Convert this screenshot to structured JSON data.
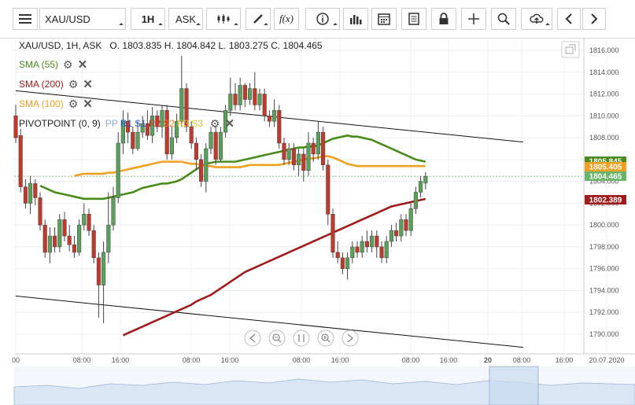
{
  "toolbar": {
    "symbol": "XAU/USD",
    "timeframe": "1H",
    "price_type": "ASK",
    "icons": [
      "menu-icon",
      "chart-type-icon",
      "drawing-pencil-icon",
      "function-icon",
      "info-icon",
      "bar-chart-icon",
      "calendar-icon",
      "report-icon",
      "lock-icon",
      "crosshair-icon",
      "zoom-icon",
      "cloud-upload-icon",
      "arrow-left-icon",
      "arrow-right-icon"
    ],
    "fx_label": "f(x)"
  },
  "header": {
    "symbol_line": "XAU/USD, 1H, ASK",
    "ohlc": "O. 1803.835 H. 1804.842 L. 1803.275 C. 1804.465"
  },
  "indicators": [
    {
      "label": "SMA (55)",
      "color": "#4a8c1c"
    },
    {
      "label": "SMA (200)",
      "color": "#a01c1c"
    },
    {
      "label": "SMA (100)",
      "color": "#f0a020"
    }
  ],
  "pivot": {
    "label": "PIVOTPOINT (0, 9)",
    "levels": [
      {
        "label": "PP",
        "color": "#88aadd"
      },
      {
        "label": "R1",
        "color": "#2255cc"
      },
      {
        "label": "S1",
        "color": "#2255cc"
      },
      {
        "label": "R2",
        "color": "#d03030"
      },
      {
        "label": "S2",
        "color": "#f08020"
      },
      {
        "label": "R3",
        "color": "#e0c020"
      },
      {
        "label": "S3",
        "color": "#e0c020"
      }
    ]
  },
  "chart_data": {
    "type": "candlestick",
    "y_axis": {
      "range": [
        1788.5,
        1817.5
      ],
      "ticks": [
        "1816.000",
        "1814.000",
        "1812.000",
        "1810.000",
        "1808.000",
        "1806.000",
        "1804.000",
        "1802.000",
        "1800.000",
        "1798.000",
        "1796.000",
        "1794.000",
        "1792.000",
        "1790.000"
      ]
    },
    "x_axis": {
      "labels": [
        "00",
        "08:00",
        "16:00",
        "08:00",
        "16:00",
        "08:00",
        "16:00",
        "08:00",
        "16:00",
        "20",
        "08:00",
        "16:00",
        "20.07.2020"
      ]
    },
    "price_tags": [
      {
        "label": "1805.845",
        "value": 1805.845,
        "bg": "#4a8c1c",
        "fg": "#ffffff"
      },
      {
        "label": "1805.405",
        "value": 1805.405,
        "bg": "#f0a020",
        "fg": "#ffffff"
      },
      {
        "label": "1804.465",
        "value": 1804.465,
        "bg": "#6ab36a",
        "fg": "#ffffff"
      },
      {
        "label": "1802.389",
        "value": 1802.389,
        "bg": "#a01c1c",
        "fg": "#ffffff"
      }
    ],
    "candles": [
      [
        1810.0,
        1808.0,
        1811.0,
        1807.5
      ],
      [
        1808.2,
        1803.5,
        1808.8,
        1803.0
      ],
      [
        1803.5,
        1802.0,
        1804.2,
        1801.5
      ],
      [
        1802.0,
        1803.8,
        1804.5,
        1801.0
      ],
      [
        1803.8,
        1802.5,
        1804.2,
        1801.8
      ],
      [
        1802.5,
        1800.0,
        1803.0,
        1799.5
      ],
      [
        1800.0,
        1797.5,
        1800.5,
        1797.0
      ],
      [
        1797.5,
        1799.0,
        1799.8,
        1796.5
      ],
      [
        1799.0,
        1798.0,
        1799.8,
        1797.5
      ],
      [
        1798.0,
        1800.5,
        1801.0,
        1797.5
      ],
      [
        1800.5,
        1799.0,
        1801.2,
        1798.5
      ],
      [
        1799.0,
        1798.2,
        1800.0,
        1797.6
      ],
      [
        1798.2,
        1797.5,
        1799.0,
        1797.0
      ],
      [
        1797.5,
        1800.0,
        1800.5,
        1797.2
      ],
      [
        1800.0,
        1801.0,
        1802.0,
        1799.5
      ],
      [
        1801.0,
        1799.5,
        1801.5,
        1799.0
      ],
      [
        1799.5,
        1797.0,
        1800.0,
        1796.5
      ],
      [
        1797.0,
        1794.5,
        1797.5,
        1791.5
      ],
      [
        1794.5,
        1797.5,
        1798.5,
        1791.0
      ],
      [
        1797.5,
        1800.0,
        1803.0,
        1796.5
      ],
      [
        1800.0,
        1802.5,
        1803.5,
        1799.5
      ],
      [
        1802.5,
        1807.5,
        1808.5,
        1802.0
      ],
      [
        1807.5,
        1809.5,
        1810.5,
        1806.5
      ],
      [
        1809.5,
        1808.5,
        1810.3,
        1807.5
      ],
      [
        1808.5,
        1807.0,
        1809.0,
        1806.5
      ],
      [
        1807.0,
        1808.5,
        1809.5,
        1806.8
      ],
      [
        1808.5,
        1809.3,
        1810.0,
        1808.0
      ],
      [
        1809.3,
        1808.2,
        1810.5,
        1807.8
      ],
      [
        1808.2,
        1810.0,
        1810.8,
        1807.5
      ],
      [
        1810.0,
        1809.0,
        1810.5,
        1808.5
      ],
      [
        1809.0,
        1810.5,
        1811.0,
        1808.0
      ],
      [
        1810.5,
        1806.5,
        1811.0,
        1806.0
      ],
      [
        1806.5,
        1808.0,
        1809.0,
        1806.0
      ],
      [
        1808.0,
        1809.5,
        1810.2,
        1807.5
      ],
      [
        1809.5,
        1812.5,
        1815.5,
        1809.0
      ],
      [
        1812.5,
        1809.0,
        1813.0,
        1808.5
      ],
      [
        1809.0,
        1807.5,
        1809.5,
        1807.0
      ],
      [
        1807.5,
        1806.0,
        1808.0,
        1805.0
      ],
      [
        1806.0,
        1804.0,
        1806.5,
        1803.5
      ],
      [
        1804.0,
        1807.0,
        1807.5,
        1803.0
      ],
      [
        1807.0,
        1808.5,
        1809.0,
        1806.5
      ],
      [
        1808.5,
        1806.0,
        1809.0,
        1805.5
      ],
      [
        1806.0,
        1808.5,
        1809.0,
        1805.8
      ],
      [
        1808.5,
        1810.5,
        1811.0,
        1808.0
      ],
      [
        1810.5,
        1812.0,
        1813.5,
        1810.0
      ],
      [
        1812.0,
        1811.0,
        1813.0,
        1810.5
      ],
      [
        1811.0,
        1812.8,
        1813.5,
        1810.5
      ],
      [
        1812.8,
        1811.5,
        1813.0,
        1810.8
      ],
      [
        1811.5,
        1812.5,
        1813.0,
        1811.0
      ],
      [
        1812.5,
        1811.0,
        1814.0,
        1810.5
      ],
      [
        1811.0,
        1812.0,
        1812.5,
        1810.5
      ],
      [
        1812.0,
        1810.0,
        1812.5,
        1809.5
      ],
      [
        1810.0,
        1809.5,
        1810.5,
        1809.0
      ],
      [
        1809.5,
        1810.5,
        1811.5,
        1809.0
      ],
      [
        1810.5,
        1807.5,
        1811.0,
        1807.0
      ],
      [
        1807.5,
        1806.0,
        1808.0,
        1805.5
      ],
      [
        1806.0,
        1807.0,
        1807.5,
        1805.5
      ],
      [
        1807.0,
        1805.5,
        1807.5,
        1805.0
      ],
      [
        1805.5,
        1806.5,
        1807.0,
        1804.5
      ],
      [
        1806.5,
        1805.0,
        1807.0,
        1804.0
      ],
      [
        1805.0,
        1807.5,
        1808.5,
        1804.5
      ],
      [
        1807.5,
        1806.5,
        1808.0,
        1805.8
      ],
      [
        1806.5,
        1808.5,
        1809.5,
        1806.0
      ],
      [
        1808.5,
        1805.5,
        1809.0,
        1805.0
      ],
      [
        1805.5,
        1801.0,
        1806.0,
        1800.0
      ],
      [
        1801.0,
        1797.5,
        1801.5,
        1797.0
      ],
      [
        1797.5,
        1797.0,
        1798.5,
        1796.5
      ],
      [
        1797.0,
        1796.0,
        1797.5,
        1795.5
      ],
      [
        1796.0,
        1797.0,
        1797.5,
        1795.0
      ],
      [
        1797.0,
        1798.0,
        1798.5,
        1796.5
      ],
      [
        1798.0,
        1797.5,
        1798.5,
        1797.0
      ],
      [
        1797.5,
        1798.5,
        1799.0,
        1797.0
      ],
      [
        1798.5,
        1798.0,
        1799.5,
        1797.5
      ],
      [
        1798.0,
        1799.0,
        1799.5,
        1797.5
      ],
      [
        1799.0,
        1798.0,
        1799.5,
        1797.0
      ],
      [
        1798.0,
        1797.0,
        1798.5,
        1796.5
      ],
      [
        1797.0,
        1798.5,
        1799.0,
        1796.5
      ],
      [
        1798.5,
        1799.5,
        1800.0,
        1798.0
      ],
      [
        1799.5,
        1799.0,
        1800.2,
        1798.5
      ],
      [
        1799.0,
        1800.5,
        1801.0,
        1798.5
      ],
      [
        1800.5,
        1799.5,
        1801.0,
        1799.0
      ],
      [
        1799.5,
        1801.5,
        1802.0,
        1799.0
      ],
      [
        1801.5,
        1803.0,
        1803.5,
        1801.0
      ],
      [
        1803.0,
        1804.0,
        1804.5,
        1802.5
      ],
      [
        1803.835,
        1804.465,
        1804.842,
        1803.275
      ]
    ],
    "series": [
      {
        "name": "SMA (55)",
        "color": "#4a8c1c",
        "values": [
          1803.6,
          1803.4,
          1803.2,
          1803.0,
          1802.9,
          1802.8,
          1802.7,
          1802.6,
          1802.5,
          1802.4,
          1802.4,
          1802.4,
          1802.4,
          1802.4,
          1802.5,
          1802.6,
          1802.7,
          1802.8,
          1802.9,
          1803.0,
          1803.2,
          1803.4,
          1803.5,
          1803.6,
          1803.7,
          1803.8,
          1803.8,
          1803.9,
          1804.0,
          1804.2,
          1804.5,
          1804.8,
          1805.1,
          1805.4,
          1805.6,
          1805.7,
          1805.8,
          1805.8,
          1805.8,
          1805.8,
          1805.8,
          1805.9,
          1806.0,
          1806.1,
          1806.2,
          1806.3,
          1806.4,
          1806.5,
          1806.6,
          1806.7,
          1806.8,
          1806.9,
          1807.0,
          1807.1,
          1807.1,
          1807.2,
          1807.2,
          1807.3,
          1807.5,
          1807.7,
          1807.9,
          1808.0,
          1808.1,
          1808.2,
          1808.1,
          1808.1,
          1808.0,
          1807.9,
          1807.8,
          1807.6,
          1807.4,
          1807.2,
          1807.0,
          1806.8,
          1806.6,
          1806.4,
          1806.2,
          1806.0,
          1805.9,
          1805.8
        ]
      },
      {
        "name": "SMA (100)",
        "color": "#f0a020",
        "values": [
          1804.5,
          1804.6,
          1804.7,
          1804.7,
          1804.7,
          1804.7,
          1804.7,
          1804.8,
          1804.8,
          1804.9,
          1805.0,
          1805.1,
          1805.2,
          1805.3,
          1805.4,
          1805.5,
          1805.6,
          1805.7,
          1805.8,
          1805.8,
          1805.8,
          1805.8,
          1805.8,
          1805.7,
          1805.6,
          1805.6,
          1805.5,
          1805.4,
          1805.4,
          1805.3,
          1805.3,
          1805.3,
          1805.3,
          1805.3,
          1805.3,
          1805.4,
          1805.5,
          1805.5,
          1805.5,
          1805.5,
          1805.5,
          1805.5,
          1805.5,
          1805.6,
          1805.7,
          1805.8,
          1805.9,
          1806.0,
          1806.1,
          1806.1,
          1806.2,
          1806.3,
          1806.3,
          1806.2,
          1806.0,
          1805.8,
          1805.6,
          1805.5,
          1805.4,
          1805.4,
          1805.4,
          1805.4,
          1805.4,
          1805.4,
          1805.4,
          1805.4,
          1805.4,
          1805.4,
          1805.4,
          1805.4,
          1805.4,
          1805.4,
          1805.4
        ]
      },
      {
        "name": "SMA (200)",
        "color": "#a01c1c",
        "values": [
          1789.9,
          1790.1,
          1790.3,
          1790.5,
          1790.7,
          1790.9,
          1791.1,
          1791.3,
          1791.5,
          1791.7,
          1791.9,
          1792.1,
          1792.3,
          1792.5,
          1792.7,
          1793.0,
          1793.2,
          1793.4,
          1793.6,
          1793.9,
          1794.2,
          1794.5,
          1794.8,
          1795.1,
          1795.4,
          1795.7,
          1795.9,
          1796.1,
          1796.3,
          1796.5,
          1796.7,
          1796.9,
          1797.1,
          1797.3,
          1797.5,
          1797.7,
          1797.9,
          1798.1,
          1798.3,
          1798.5,
          1798.7,
          1798.9,
          1799.1,
          1799.3,
          1799.5,
          1799.7,
          1799.9,
          1800.1,
          1800.3,
          1800.5,
          1800.7,
          1800.9,
          1801.1,
          1801.3,
          1801.5,
          1801.7,
          1801.8,
          1801.9,
          1802.0,
          1802.1,
          1802.2,
          1802.3,
          1802.389
        ]
      }
    ],
    "trendlines": [
      {
        "name": "upper-trendline",
        "points": [
          [
            0,
            1812.3
          ],
          [
            104,
            1807.6
          ]
        ]
      },
      {
        "name": "lower-trendline",
        "points": [
          [
            0,
            1793.5
          ],
          [
            104,
            1788.8
          ]
        ]
      }
    ],
    "ref_line": 1804.465
  },
  "nav": {
    "icons": [
      "scroll-left-icon",
      "zoom-out-icon",
      "pause-icon",
      "zoom-in-icon",
      "scroll-right-icon"
    ]
  }
}
